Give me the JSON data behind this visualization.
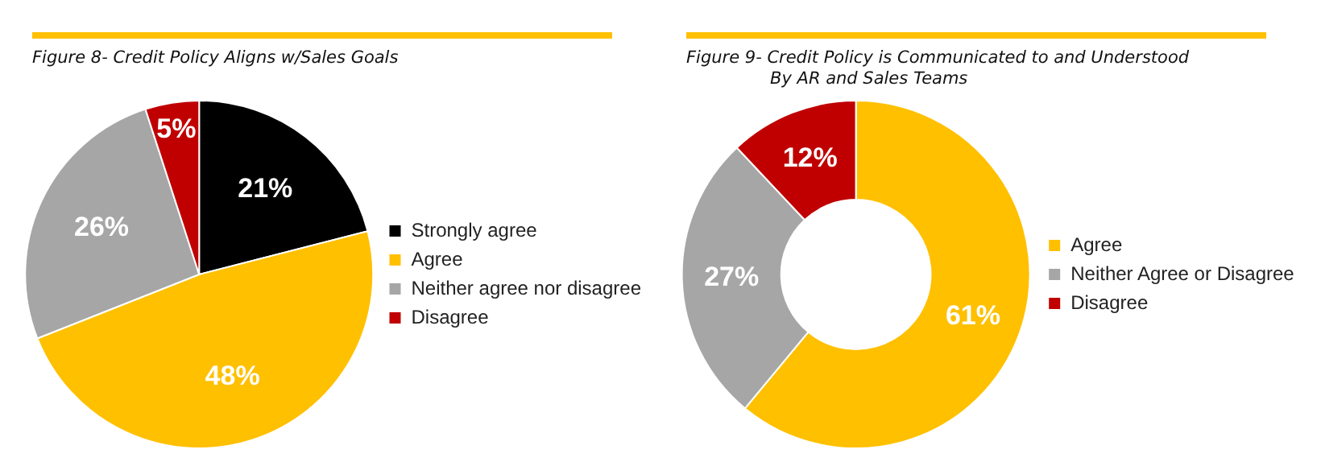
{
  "chart_data": [
    {
      "type": "pie",
      "title": "Figure 8- Credit Policy Aligns w/Sales Goals",
      "categories": [
        "Strongly agree",
        "Agree",
        "Neither agree nor disagree",
        "Disagree"
      ],
      "values": [
        21,
        48,
        26,
        5
      ],
      "colors": [
        "#000000",
        "#ffc000",
        "#a6a6a6",
        "#c00000"
      ],
      "value_labels": [
        "21%",
        "48%",
        "26%",
        "5%"
      ],
      "legend": "right"
    },
    {
      "type": "donut",
      "title": "Figure 9- Credit Policy is Communicated to and Understood\nBy AR and Sales Teams",
      "categories": [
        "Agree",
        "Neither Agree or Disagree",
        "Disagree"
      ],
      "values": [
        61,
        27,
        12
      ],
      "colors": [
        "#ffc000",
        "#a6a6a6",
        "#c00000"
      ],
      "value_labels": [
        "61%",
        "27%",
        "12%"
      ],
      "legend": "right"
    }
  ]
}
